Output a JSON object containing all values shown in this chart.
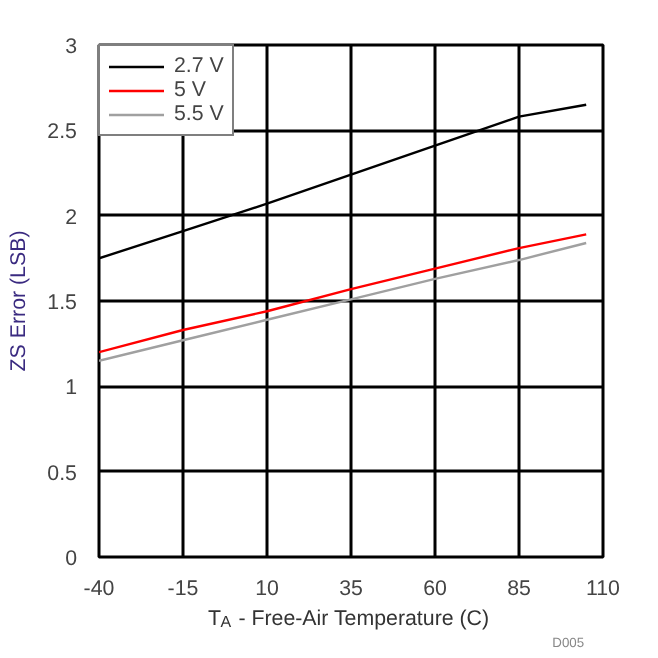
{
  "chart_data": {
    "type": "line",
    "xlabel": "T$_{A}$ - Free-Air Temperature (C)",
    "ylabel": "ZS Error (LSB)",
    "x": [
      -40,
      -15,
      10,
      35,
      60,
      85,
      105
    ],
    "series": [
      {
        "name": "2.7 V",
        "color": "#000000",
        "values": [
          1.75,
          1.91,
          2.07,
          2.24,
          2.41,
          2.58,
          2.65
        ]
      },
      {
        "name": "5 V",
        "color": "#ff0000",
        "values": [
          1.2,
          1.33,
          1.44,
          1.57,
          1.69,
          1.81,
          1.89
        ]
      },
      {
        "name": "5.5 V",
        "color": "#a0a0a0",
        "values": [
          1.15,
          1.27,
          1.39,
          1.51,
          1.63,
          1.74,
          1.84
        ]
      }
    ],
    "xlim": [
      -40,
      110
    ],
    "ylim": [
      0,
      3
    ],
    "xticks": [
      -40,
      -15,
      10,
      35,
      60,
      85,
      110
    ],
    "yticks": [
      0,
      0.5,
      1,
      1.5,
      2,
      2.5,
      3
    ],
    "grid": true,
    "legend": "top left",
    "marker": "none",
    "line_style": "solid",
    "annotations": [
      "D005"
    ]
  }
}
